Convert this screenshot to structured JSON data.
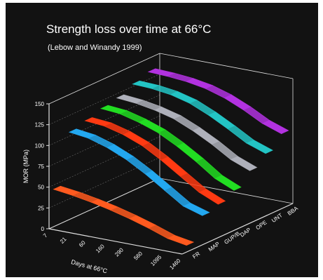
{
  "chart_data": {
    "type": "area",
    "title": "Strength loss over time at 66°C",
    "subtitle": "(Lebow and Winandy 1999)",
    "ylabel": "MOR (MPa)",
    "xlabel": "Days at 66°C",
    "ylim": [
      0,
      150
    ],
    "y_ticks": [
      "0",
      "25",
      "50",
      "75",
      "100",
      "125",
      "150"
    ],
    "x_categories": [
      "7",
      "21",
      "60",
      "160",
      "290",
      "560",
      "1095",
      "1460"
    ],
    "z_categories": [
      "FR",
      "MAP",
      "GUP/B",
      "DAP",
      "OPE",
      "UNT",
      "BBA"
    ],
    "colors": {
      "background": "#121212",
      "axes": "#e0e0e0",
      "text": "#ffffff",
      "FR": "#ff5a1f",
      "MAP": "#23a8f0",
      "GUP/B": "#ff3a12",
      "DAP": "#22dd22",
      "OPE": "#aeb0ba",
      "UNT": "#23c4c4",
      "BBA": "#b232e0"
    },
    "series": [
      {
        "name": "FR",
        "values": [
          45,
          42,
          38,
          33,
          27,
          20,
          12,
          8
        ]
      },
      {
        "name": "MAP",
        "values": [
          105,
          102,
          95,
          85,
          72,
          57,
          42,
          35
        ]
      },
      {
        "name": "GUP/B",
        "values": [
          110,
          108,
          102,
          93,
          80,
          65,
          50,
          40
        ]
      },
      {
        "name": "DAP",
        "values": [
          116,
          114,
          108,
          100,
          88,
          74,
          58,
          48
        ]
      },
      {
        "name": "OPE",
        "values": [
          120,
          118,
          114,
          108,
          98,
          86,
          72,
          63
        ]
      },
      {
        "name": "UNT",
        "values": [
          128,
          127,
          124,
          118,
          108,
          96,
          83,
          75
        ]
      },
      {
        "name": "BBA",
        "values": [
          134,
          133,
          131,
          127,
          120,
          110,
          98,
          90
        ]
      }
    ]
  }
}
